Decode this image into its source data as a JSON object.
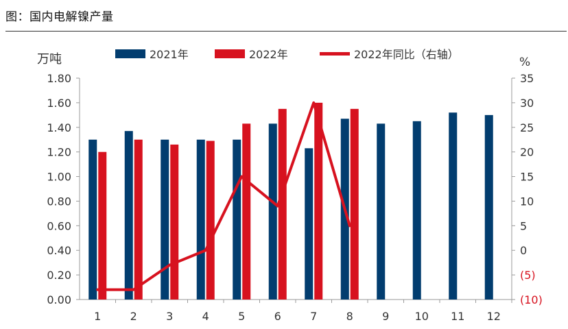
{
  "figure_title": "图：国内电解镍产量",
  "chart_data": {
    "type": "bar",
    "categories": [
      "1",
      "2",
      "3",
      "4",
      "5",
      "6",
      "7",
      "8",
      "9",
      "10",
      "11",
      "12"
    ],
    "series": [
      {
        "name": "2021年",
        "kind": "bar",
        "axis": "left",
        "color": "#023d6f",
        "values": [
          1.3,
          1.37,
          1.3,
          1.3,
          1.3,
          1.43,
          1.23,
          1.47,
          1.43,
          1.45,
          1.52,
          1.5
        ]
      },
      {
        "name": "2022年",
        "kind": "bar",
        "axis": "left",
        "color": "#d7121f",
        "values": [
          1.2,
          1.3,
          1.26,
          1.29,
          1.43,
          1.55,
          1.6,
          1.55,
          null,
          null,
          null,
          null
        ]
      },
      {
        "name": "2022年同比（右轴）",
        "kind": "line",
        "axis": "right",
        "color": "#d7121f",
        "values": [
          -8,
          -8,
          -3,
          0,
          15,
          9,
          30,
          5,
          null,
          null,
          null,
          null
        ]
      }
    ],
    "y_left": {
      "label": "万吨",
      "min": 0,
      "max": 1.8,
      "ticks": [
        "0.00",
        "0.20",
        "0.40",
        "0.60",
        "0.80",
        "1.00",
        "1.20",
        "1.40",
        "1.60",
        "1.80"
      ]
    },
    "y_right": {
      "label": "%",
      "min": -10,
      "max": 35,
      "ticks": [
        "(10)",
        "(5)",
        "0",
        "5",
        "10",
        "15",
        "20",
        "25",
        "30",
        "35"
      ],
      "negative_tick_color": "#d7121f"
    },
    "grid": false,
    "legend_position": "top"
  }
}
